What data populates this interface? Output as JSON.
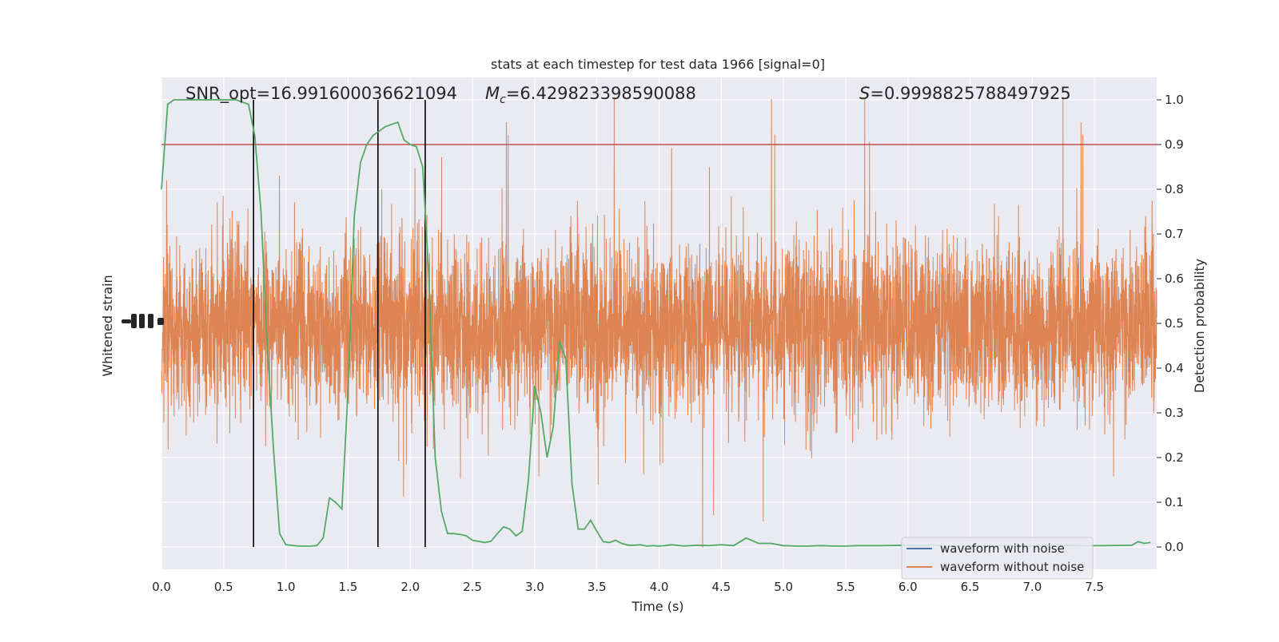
{
  "chart_data": {
    "type": "line",
    "title": "stats at each timestep for test data 1966 [signal=0]",
    "annotations": {
      "snr": "SNR_opt=16.991600036621094",
      "mc_symbol": "M",
      "mc_sub": "c",
      "mc_value": "=6.429823398590088",
      "s_symbol": "S",
      "s_value": "=0.9998825788497925"
    },
    "xlabel": "Time (s)",
    "ylabel_left": "Whitened strain",
    "ylabel_right": "Detection probability",
    "xlim": [
      0,
      8
    ],
    "ylim_right": [
      -0.05,
      1.05
    ],
    "x_ticks": [
      0.0,
      0.5,
      1.0,
      1.5,
      2.0,
      2.5,
      3.0,
      3.5,
      4.0,
      4.5,
      5.0,
      5.5,
      6.0,
      6.5,
      7.0,
      7.5
    ],
    "x_tick_labels": [
      "0.0",
      "0.5",
      "1.0",
      "1.5",
      "2.0",
      "2.5",
      "3.0",
      "3.5",
      "4.0",
      "4.5",
      "5.0",
      "5.5",
      "6.0",
      "6.5",
      "7.0",
      "7.5"
    ],
    "y_ticks_right": [
      0.0,
      0.1,
      0.2,
      0.3,
      0.4,
      0.5,
      0.6,
      0.7,
      0.8,
      0.9,
      1.0
    ],
    "y_tick_labels_right": [
      "0.0",
      "0.1",
      "0.2",
      "0.3",
      "0.4",
      "0.5",
      "0.6",
      "0.7",
      "0.8",
      "0.9",
      "1.0"
    ],
    "threshold": 0.9,
    "detection_times": [
      0.74,
      1.74,
      2.12
    ],
    "grid": true,
    "legend_position": "bottom-right",
    "colors": {
      "background": "#eaeaf2",
      "grid": "#ffffff",
      "waveform_with_noise": "#4c72b0",
      "waveform_without_noise": "#dd8452",
      "probability": "#55a868",
      "threshold": "#c44e52",
      "detection_marker": "#000000"
    },
    "series": [
      {
        "name": "waveform with noise",
        "values": []
      },
      {
        "name": "waveform without noise",
        "values": []
      }
    ],
    "probability_x": [
      0.0,
      0.05,
      0.1,
      0.15,
      0.2,
      0.3,
      0.4,
      0.5,
      0.6,
      0.7,
      0.75,
      0.8,
      0.85,
      0.9,
      0.95,
      1.0,
      1.1,
      1.2,
      1.25,
      1.3,
      1.35,
      1.4,
      1.45,
      1.5,
      1.55,
      1.6,
      1.65,
      1.7,
      1.75,
      1.8,
      1.85,
      1.9,
      1.95,
      2.0,
      2.05,
      2.1,
      2.15,
      2.2,
      2.25,
      2.3,
      2.35,
      2.4,
      2.45,
      2.5,
      2.6,
      2.65,
      2.7,
      2.75,
      2.8,
      2.85,
      2.9,
      2.95,
      3.0,
      3.05,
      3.1,
      3.15,
      3.2,
      3.25,
      3.3,
      3.35,
      3.4,
      3.45,
      3.5,
      3.55,
      3.6,
      3.65,
      3.7,
      3.75,
      3.8,
      3.85,
      3.9,
      3.95,
      4.0,
      4.05,
      4.1,
      4.2,
      4.3,
      4.4,
      4.5,
      4.6,
      4.7,
      4.8,
      4.9,
      5.0,
      5.1,
      5.2,
      5.3,
      5.4,
      5.5,
      5.6,
      5.8,
      6.0,
      6.1,
      6.2,
      6.3,
      6.5,
      6.8,
      7.0,
      7.2,
      7.4,
      7.6,
      7.8,
      7.85,
      7.9,
      7.95
    ],
    "probability_y": [
      0.8,
      0.99,
      1.0,
      1.0,
      1.0,
      1.0,
      1.0,
      1.0,
      1.0,
      0.99,
      0.92,
      0.75,
      0.45,
      0.22,
      0.03,
      0.005,
      0.002,
      0.002,
      0.003,
      0.02,
      0.11,
      0.1,
      0.085,
      0.35,
      0.74,
      0.86,
      0.9,
      0.92,
      0.93,
      0.94,
      0.945,
      0.95,
      0.91,
      0.9,
      0.895,
      0.85,
      0.6,
      0.2,
      0.08,
      0.03,
      0.03,
      0.028,
      0.025,
      0.015,
      0.01,
      0.013,
      0.03,
      0.045,
      0.04,
      0.025,
      0.035,
      0.15,
      0.36,
      0.3,
      0.2,
      0.27,
      0.46,
      0.42,
      0.14,
      0.04,
      0.04,
      0.06,
      0.035,
      0.012,
      0.01,
      0.015,
      0.008,
      0.004,
      0.004,
      0.005,
      0.002,
      0.003,
      0.002,
      0.003,
      0.005,
      0.002,
      0.004,
      0.003,
      0.005,
      0.003,
      0.02,
      0.008,
      0.008,
      0.003,
      0.002,
      0.002,
      0.003,
      0.002,
      0.002,
      0.003,
      0.003,
      0.004,
      0.003,
      0.005,
      0.002,
      0.002,
      0.003,
      0.002,
      0.004,
      0.003,
      0.003,
      0.004,
      0.012,
      0.008,
      0.01
    ]
  }
}
